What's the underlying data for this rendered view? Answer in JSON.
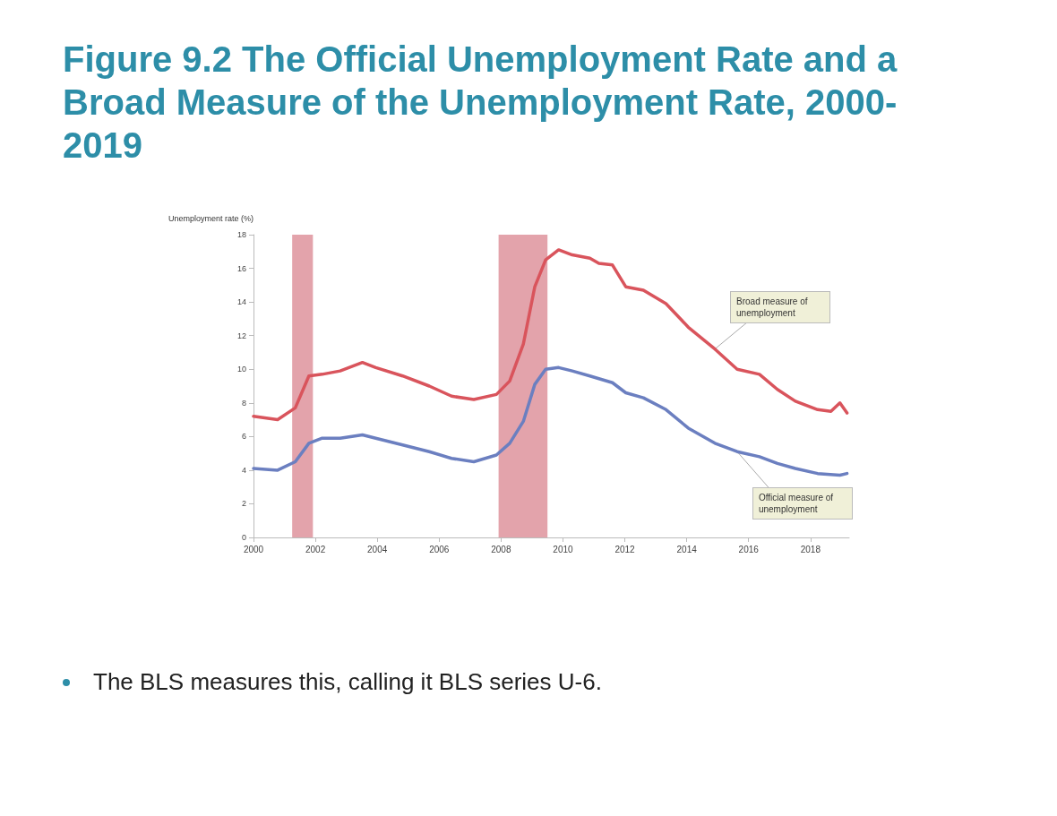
{
  "chart_data": {
    "type": "line",
    "title": "Figure 9.2 The Official Unemployment Rate and a Broad Measure of the Unemployment Rate, 2000-2019",
    "ylabel": "Unemployment rate (%)",
    "xlim": [
      2000,
      2019.25
    ],
    "xticks": [
      2000,
      2002,
      2004,
      2006,
      2008,
      2010,
      2012,
      2014,
      2016,
      2018
    ],
    "ylim": [
      0,
      18
    ],
    "yticks": [
      0,
      2,
      4,
      6,
      8,
      10,
      12,
      14,
      16,
      18
    ],
    "series": [
      {
        "color": "#d9545c",
        "x": [
          2000.0,
          2000.78,
          2001.35,
          2001.79,
          2002.22,
          2002.8,
          2003.52,
          2003.95,
          2004.82,
          2005.68,
          2006.4,
          2007.12,
          2007.85,
          2008.28,
          2008.72,
          2009.09,
          2009.44,
          2009.86,
          2010.3,
          2010.87,
          2011.16,
          2011.6,
          2012.03,
          2012.6,
          2013.33,
          2014.05,
          2014.91,
          2015.63,
          2016.35,
          2016.93,
          2017.51,
          2018.23,
          2018.66,
          2018.95,
          2019.18
        ],
        "values": [
          7.2,
          7.0,
          7.7,
          9.6,
          9.7,
          9.9,
          10.4,
          10.1,
          9.6,
          9.0,
          8.4,
          8.2,
          8.5,
          9.3,
          11.5,
          14.9,
          16.5,
          17.1,
          16.8,
          16.6,
          16.3,
          16.2,
          14.9,
          14.7,
          13.9,
          12.5,
          11.2,
          10.0,
          9.7,
          8.8,
          8.1,
          7.6,
          7.5,
          8.0,
          7.4
        ]
      },
      {
        "color": "#6b7fc0",
        "x": [
          2000.0,
          2000.78,
          2001.35,
          2001.79,
          2002.22,
          2002.8,
          2003.52,
          2003.95,
          2004.82,
          2005.68,
          2006.4,
          2007.12,
          2007.85,
          2008.28,
          2008.72,
          2009.09,
          2009.44,
          2009.86,
          2010.3,
          2010.87,
          2011.6,
          2012.03,
          2012.6,
          2013.33,
          2014.05,
          2014.91,
          2015.63,
          2016.35,
          2016.93,
          2017.51,
          2018.23,
          2018.95,
          2019.18
        ],
        "values": [
          4.1,
          4.0,
          4.5,
          5.6,
          5.9,
          5.9,
          6.1,
          5.9,
          5.5,
          5.1,
          4.7,
          4.5,
          4.9,
          5.6,
          6.9,
          9.1,
          10.0,
          10.1,
          9.9,
          9.6,
          9.2,
          8.6,
          8.3,
          7.6,
          6.5,
          5.6,
          5.1,
          4.8,
          4.4,
          4.1,
          3.8,
          3.7,
          3.8
        ]
      }
    ],
    "bands": [
      {
        "axis": "x",
        "from": 2001.25,
        "to": 2001.92,
        "color": "#e3a3ab"
      },
      {
        "axis": "x",
        "from": 2007.92,
        "to": 2009.5,
        "color": "#e3a3ab"
      }
    ],
    "annotations": [
      {
        "text": "Broad measure of unemployment",
        "x": 2014.91,
        "y": 11.2
      },
      {
        "text": "Official measure of unemployment",
        "x": 2015.63,
        "y": 5.1
      },
      "The BLS measures this, calling it BLS series U-6."
    ],
    "grid": false,
    "marker": "none",
    "line_style": "solid"
  }
}
